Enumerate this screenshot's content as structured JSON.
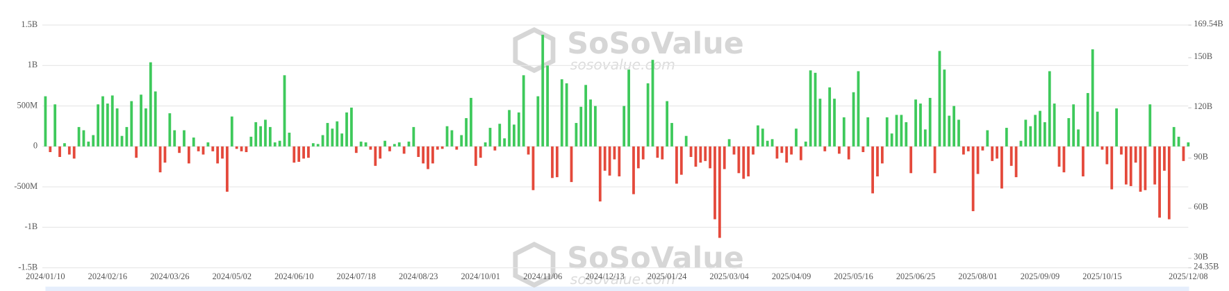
{
  "chart_data": {
    "type": "bar",
    "watermark": {
      "title": "SoSoValue",
      "subtitle": "sosovalue.com"
    },
    "categories": [
      "2024/01/10",
      null,
      null,
      null,
      null,
      null,
      null,
      null,
      null,
      null,
      null,
      null,
      null,
      "2024/02/16",
      null,
      null,
      null,
      null,
      null,
      null,
      null,
      null,
      null,
      null,
      null,
      null,
      "2024/03/26",
      null,
      null,
      null,
      null,
      null,
      null,
      null,
      null,
      null,
      null,
      null,
      null,
      "2024/05/02",
      null,
      null,
      null,
      null,
      null,
      null,
      null,
      null,
      null,
      null,
      null,
      null,
      "2024/06/10",
      null,
      null,
      null,
      null,
      null,
      null,
      null,
      null,
      null,
      null,
      null,
      null,
      "2024/07/18",
      null,
      null,
      null,
      null,
      null,
      null,
      null,
      null,
      null,
      null,
      null,
      null,
      "2024/08/23",
      null,
      null,
      null,
      null,
      null,
      null,
      null,
      null,
      null,
      null,
      null,
      null,
      "2024/10/01",
      null,
      null,
      null,
      null,
      null,
      null,
      null,
      null,
      null,
      null,
      null,
      null,
      "2024/11/06",
      null,
      null,
      null,
      null,
      null,
      null,
      null,
      null,
      null,
      null,
      null,
      null,
      "2024/12/13",
      null,
      null,
      null,
      null,
      null,
      null,
      null,
      null,
      null,
      null,
      null,
      null,
      "2025/01/24",
      null,
      null,
      null,
      null,
      null,
      null,
      null,
      null,
      null,
      null,
      null,
      null,
      "2025/03/04",
      null,
      null,
      null,
      null,
      null,
      null,
      null,
      null,
      null,
      null,
      null,
      null,
      "2025/04/09",
      null,
      null,
      null,
      null,
      null,
      null,
      null,
      null,
      null,
      null,
      null,
      null,
      "2025/05/16",
      null,
      null,
      null,
      null,
      null,
      null,
      null,
      null,
      null,
      null,
      null,
      null,
      "2025/06/25",
      null,
      null,
      null,
      null,
      null,
      null,
      null,
      null,
      null,
      null,
      null,
      null,
      "2025/08/01",
      null,
      null,
      null,
      null,
      null,
      null,
      null,
      null,
      null,
      null,
      null,
      null,
      "2025/09/09",
      null,
      null,
      null,
      null,
      null,
      null,
      null,
      null,
      null,
      null,
      null,
      null,
      "2025/10/15",
      null,
      null,
      null,
      null,
      null,
      null,
      null,
      null,
      null,
      null,
      null,
      null,
      null,
      null,
      null,
      null,
      null,
      "2025/12/08"
    ],
    "values": [
      620,
      -70,
      520,
      -130,
      40,
      -100,
      -150,
      240,
      200,
      60,
      140,
      520,
      620,
      530,
      630,
      470,
      130,
      240,
      560,
      -140,
      640,
      470,
      1040,
      680,
      -320,
      -200,
      410,
      200,
      -80,
      200,
      -210,
      110,
      -60,
      -100,
      50,
      -60,
      -210,
      -150,
      -560,
      370,
      -30,
      -60,
      -70,
      120,
      300,
      250,
      330,
      240,
      50,
      70,
      880,
      170,
      -200,
      -190,
      -150,
      -140,
      40,
      30,
      140,
      290,
      220,
      310,
      160,
      420,
      480,
      -80,
      60,
      50,
      -40,
      -240,
      -150,
      70,
      -60,
      30,
      50,
      -90,
      60,
      240,
      -130,
      -210,
      -280,
      -210,
      -40,
      -30,
      250,
      200,
      -40,
      140,
      350,
      600,
      -240,
      -140,
      50,
      230,
      -50,
      280,
      100,
      450,
      270,
      420,
      880,
      -100,
      -540,
      620,
      1380,
      1000,
      -390,
      -380,
      830,
      780,
      -440,
      290,
      490,
      760,
      580,
      500,
      -680,
      -300,
      -360,
      -160,
      -370,
      500,
      950,
      -590,
      -270,
      -160,
      780,
      1070,
      -140,
      -160,
      560,
      290,
      -460,
      -350,
      130,
      -130,
      -250,
      -200,
      -180,
      -270,
      -900,
      -1130,
      -280,
      90,
      -100,
      -330,
      -400,
      -370,
      -100,
      260,
      220,
      70,
      90,
      -150,
      -80,
      -200,
      -100,
      220,
      -170,
      60,
      940,
      910,
      590,
      -60,
      730,
      590,
      -90,
      360,
      -160,
      670,
      930,
      -70,
      360,
      -580,
      -370,
      -210,
      360,
      160,
      390,
      390,
      300,
      -330,
      580,
      530,
      210,
      600,
      -330,
      1180,
      950,
      380,
      500,
      330,
      -100,
      -60,
      -800,
      -340,
      -50,
      200,
      -180,
      -150,
      -520,
      230,
      -240,
      -380,
      70,
      330,
      250,
      390,
      440,
      300,
      930,
      530,
      -250,
      -320,
      350,
      520,
      210,
      -370,
      660,
      1200,
      430,
      -40,
      -220,
      -530,
      470,
      -100,
      -470,
      -490,
      -200,
      -560,
      -540,
      520,
      -470,
      -880,
      -300,
      -900,
      240,
      120,
      -180,
      50
    ],
    "positive_color": "#3ec95b",
    "negative_color": "#e4493b",
    "ylim": [
      -1500,
      1500
    ],
    "yticks": [
      {
        "value": -1500,
        "label": "-1.5B"
      },
      {
        "value": -1000,
        "label": "-1B"
      },
      {
        "value": -500,
        "label": "-500M"
      },
      0,
      {
        "value": 500,
        "label": "500M"
      },
      {
        "value": 1000,
        "label": "1B"
      },
      {
        "value": 1500,
        "label": "1.5B"
      }
    ],
    "y2lim": [
      24.35,
      169.54
    ],
    "y2ticks": [
      {
        "value": 24.35,
        "label": "24.35B"
      },
      {
        "value": 30,
        "label": "30B"
      },
      {
        "value": 60,
        "label": "60B"
      },
      {
        "value": 90,
        "label": "90B"
      },
      {
        "value": 120,
        "label": "120B"
      },
      {
        "value": 150,
        "label": "150B"
      },
      {
        "value": 169.54,
        "label": "169.54B"
      }
    ],
    "grid": true
  }
}
